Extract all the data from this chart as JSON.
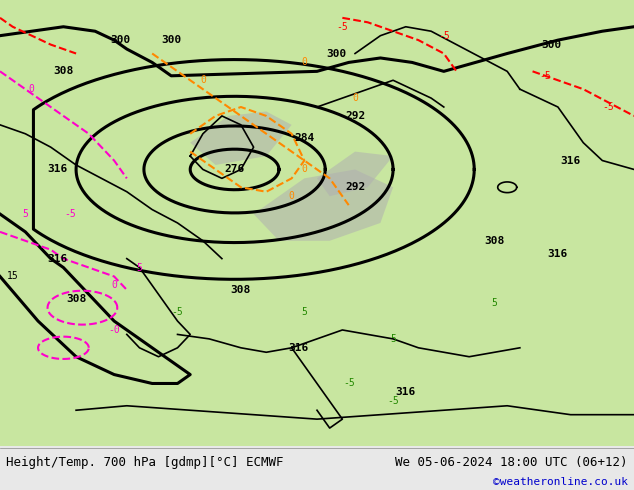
{
  "title_left": "Height/Temp. 700 hPa [gdmp][°C] ECMWF",
  "title_right": "We 05-06-2024 18:00 UTC (06+12)",
  "credit": "©weatheronline.co.uk",
  "bg_color": "#f0f0f0",
  "map_bg_land": "#c8e6a0",
  "map_bg_sea": "#ffffff",
  "map_bg_mountain": "#b0b0b0",
  "footer_bg": "#e8e8e8",
  "footer_text_color": "#000000",
  "credit_color": "#0000cc",
  "contour_color_height": "#000000",
  "contour_color_temp_red": "#ff0000",
  "contour_color_temp_magenta": "#ff00cc",
  "contour_color_temp_orange": "#ff8800",
  "contour_color_temp_green": "#228800",
  "figsize": [
    6.34,
    4.9
  ],
  "dpi": 100
}
